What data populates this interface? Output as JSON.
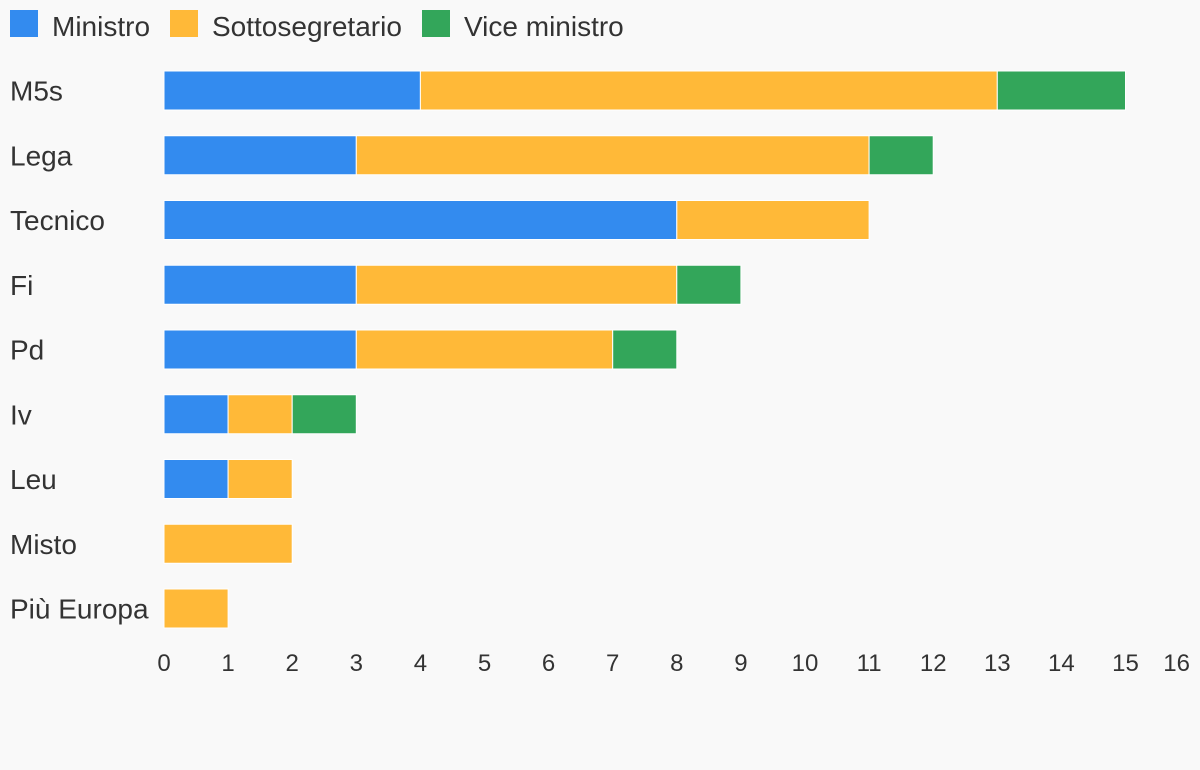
{
  "chart_data": {
    "type": "bar",
    "orientation": "horizontal",
    "stacked": true,
    "title": "",
    "xlabel": "",
    "ylabel": "",
    "categories": [
      "M5s",
      "Lega",
      "Tecnico",
      "Fi",
      "Pd",
      "Iv",
      "Leu",
      "Misto",
      "Più Europa"
    ],
    "series": [
      {
        "name": "Ministro",
        "color": "#338bef",
        "values": [
          4,
          3,
          8,
          3,
          3,
          1,
          1,
          0,
          0
        ]
      },
      {
        "name": "Sottosegretario",
        "color": "#ffb938",
        "values": [
          9,
          8,
          3,
          5,
          4,
          1,
          1,
          2,
          1
        ]
      },
      {
        "name": "Vice ministro",
        "color": "#33a65a",
        "values": [
          2,
          1,
          0,
          1,
          1,
          1,
          0,
          0,
          0
        ]
      }
    ],
    "xlim": [
      0,
      16
    ],
    "xticks": [
      0,
      1,
      2,
      3,
      4,
      5,
      6,
      7,
      8,
      9,
      10,
      11,
      12,
      13,
      14,
      15,
      16
    ],
    "grid": false,
    "legend_position": "top-left"
  }
}
